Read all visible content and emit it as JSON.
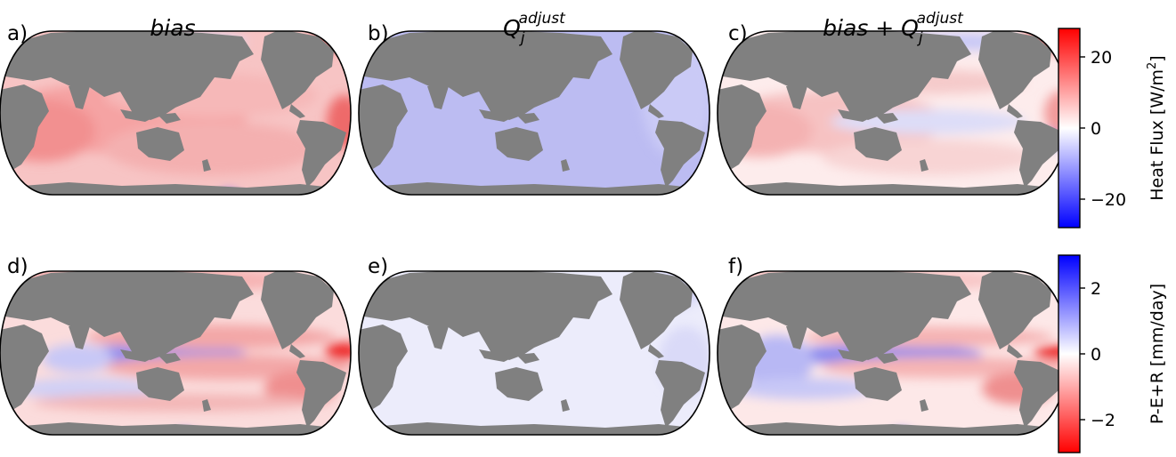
{
  "chart_data": {
    "type": "heatmap",
    "panels": [
      {
        "label": "a)",
        "title": "bias",
        "field": "heat_flux",
        "pattern": "bias_heat",
        "colorbar": "heat"
      },
      {
        "label": "b)",
        "title": "Q_j^adjust",
        "title_base": "Q",
        "title_sub": "j",
        "title_sup": "adjust",
        "field": "heat_flux",
        "pattern": "adjust_heat",
        "colorbar": "heat"
      },
      {
        "label": "c)",
        "title": "bias + Q_j^adjust",
        "title_prefix": "bias + Q",
        "title_sub": "j",
        "title_sup": "adjust",
        "field": "heat_flux",
        "pattern": "sum_heat",
        "colorbar": "heat"
      },
      {
        "label": "d)",
        "title": "",
        "field": "freshwater_flux",
        "pattern": "bias_fw",
        "colorbar": "fw"
      },
      {
        "label": "e)",
        "title": "",
        "field": "freshwater_flux",
        "pattern": "adjust_fw",
        "colorbar": "fw"
      },
      {
        "label": "f)",
        "title": "",
        "field": "freshwater_flux",
        "pattern": "sum_fw",
        "colorbar": "fw"
      }
    ],
    "colorbars": {
      "heat": {
        "label": "Heat Flux [W/m²]",
        "label_base": "Heat Flux [W/m",
        "label_sup": "2",
        "label_end": "]",
        "range": [
          -28,
          28
        ],
        "ticks": [
          20,
          0,
          -20
        ],
        "tick_labels": [
          "20",
          "0",
          "−20"
        ],
        "low_color": "#0000ff",
        "high_color": "#ff0000"
      },
      "fw": {
        "label": "P-E+R [mm/day]",
        "range": [
          -3,
          3
        ],
        "ticks": [
          2,
          0,
          -2
        ],
        "tick_labels": [
          "2",
          "0",
          "−2"
        ],
        "low_color": "#ff0000",
        "high_color": "#0000ff"
      }
    },
    "projection": "Robinson",
    "land_color": "#808080"
  }
}
